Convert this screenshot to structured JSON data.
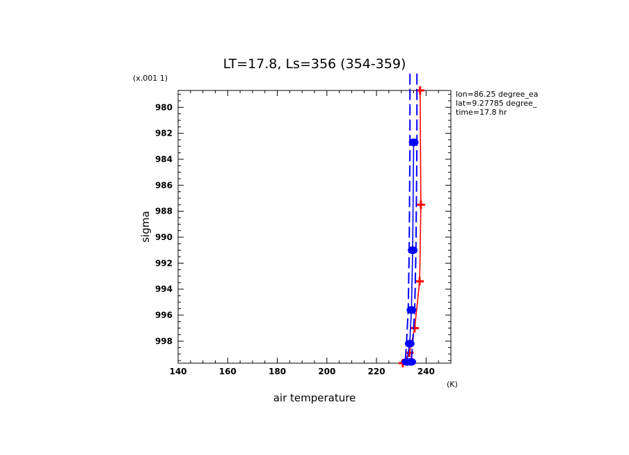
{
  "chart_data": {
    "type": "line",
    "title": "LT=17.8, Ls=356 (354-359)",
    "xlabel": "air temperature",
    "ylabel": "sigma",
    "x_unit": "(K)",
    "y_scale_note": "(x.001 1)",
    "xlim": [
      140,
      250
    ],
    "ylim": [
      999.7,
      978.7
    ],
    "x_ticks": [
      140,
      160,
      180,
      200,
      220,
      240
    ],
    "y_ticks": [
      980,
      982,
      984,
      986,
      988,
      990,
      992,
      994,
      996,
      998
    ],
    "annotations": [
      "lon=86.25 degree_ea",
      "lat=9.27785 degree_",
      "time=17.8 hr"
    ],
    "series": [
      {
        "color": "#ff0000",
        "marker": "cross",
        "style": "solid",
        "points": [
          [
            237.6,
            978.7
          ],
          [
            237.9,
            987.5
          ],
          [
            237.4,
            993.4
          ],
          [
            235.4,
            997.0
          ],
          [
            233.3,
            998.9
          ],
          [
            230.6,
            999.7
          ]
        ]
      },
      {
        "color": "#0000ff",
        "marker": "circle",
        "style": "solid",
        "points": [
          [
            235.0,
            982.7
          ],
          [
            234.6,
            991.0
          ],
          [
            234.1,
            995.6
          ],
          [
            233.4,
            998.2
          ],
          [
            232.2,
            999.6
          ],
          [
            234.0,
            999.6
          ]
        ]
      },
      {
        "color": "#0000ff",
        "style": "dashed",
        "points": [
          [
            233.5,
            977.4
          ],
          [
            233.5,
            982.7
          ],
          [
            233.2,
            991.0
          ],
          [
            232.8,
            995.6
          ],
          [
            232.1,
            998.2
          ],
          [
            231.6,
            999.6
          ]
        ]
      },
      {
        "color": "#0000ff",
        "style": "dashed",
        "points": [
          [
            236.3,
            977.4
          ],
          [
            236.3,
            982.7
          ],
          [
            235.9,
            991.0
          ],
          [
            235.4,
            995.6
          ],
          [
            234.6,
            998.2
          ],
          [
            234.0,
            999.6
          ]
        ]
      }
    ]
  }
}
